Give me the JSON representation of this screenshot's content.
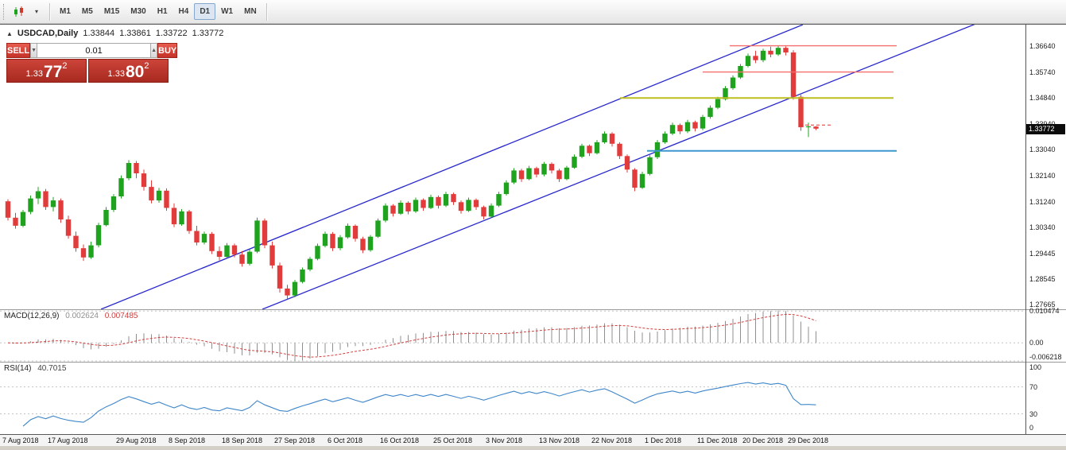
{
  "toolbar": {
    "timeframes": [
      "M1",
      "M5",
      "M15",
      "M30",
      "H1",
      "H4",
      "D1",
      "W1",
      "MN"
    ],
    "active_timeframe": "D1",
    "chart_type_tooltip": "chart-type"
  },
  "quote_header": {
    "toggle_glyph": "▲",
    "symbol": "USDCAD,Daily",
    "open": "1.33844",
    "high": "1.33861",
    "low": "1.33722",
    "close": "1.33772"
  },
  "trade_widget": {
    "sell_label": "SELL",
    "buy_label": "BUY",
    "volume": "0.01",
    "stepper_down": "▼",
    "stepper_up": "▲",
    "sell_price": {
      "small": "1.33",
      "big": "77",
      "sup": "2"
    },
    "buy_price": {
      "small": "1.33",
      "big": "80",
      "sup": "2"
    }
  },
  "price_scale": {
    "current": "1.33772"
  },
  "chart_data": {
    "type": "candlestick",
    "title": "USDCAD,Daily",
    "symbol": "USDCAD",
    "timeframe": "Daily",
    "ylim": [
      1.275,
      1.3739
    ],
    "grid": false,
    "colors": {
      "bull": "#1fa31f",
      "bear": "#e23b3b",
      "channel": "#2828cc"
    },
    "y_ticks": [
      "1.36640",
      "1.35740",
      "1.34840",
      "1.33940",
      "1.33040",
      "1.32140",
      "1.31240",
      "1.30340",
      "1.29445",
      "1.28545",
      "1.27665"
    ],
    "x_labels": [
      {
        "i": 0,
        "t": "7 Aug 2018"
      },
      {
        "i": 6,
        "t": "17 Aug 2018"
      },
      {
        "i": 15,
        "t": "29 Aug 2018"
      },
      {
        "i": 22,
        "t": "8 Sep 2018"
      },
      {
        "i": 29,
        "t": "18 Sep 2018"
      },
      {
        "i": 36,
        "t": "27 Sep 2018"
      },
      {
        "i": 43,
        "t": "6 Oct 2018"
      },
      {
        "i": 50,
        "t": "16 Oct 2018"
      },
      {
        "i": 57,
        "t": "25 Oct 2018"
      },
      {
        "i": 64,
        "t": "3 Nov 2018"
      },
      {
        "i": 71,
        "t": "13 Nov 2018"
      },
      {
        "i": 78,
        "t": "22 Nov 2018"
      },
      {
        "i": 85,
        "t": "1 Dec 2018"
      },
      {
        "i": 92,
        "t": "11 Dec 2018"
      },
      {
        "i": 98,
        "t": "20 Dec 2018"
      },
      {
        "i": 104,
        "t": "29 Dec 2018"
      }
    ],
    "candles": [
      [
        1.3125,
        1.3132,
        1.3058,
        1.3068
      ],
      [
        1.3068,
        1.3085,
        1.303,
        1.304
      ],
      [
        1.304,
        1.3095,
        1.3035,
        1.3088
      ],
      [
        1.3088,
        1.3145,
        1.308,
        1.3135
      ],
      [
        1.3135,
        1.3175,
        1.3115,
        1.316
      ],
      [
        1.316,
        1.3168,
        1.3095,
        1.3105
      ],
      [
        1.3105,
        1.314,
        1.309,
        1.3128
      ],
      [
        1.3128,
        1.3135,
        1.305,
        1.3062
      ],
      [
        1.3062,
        1.3075,
        1.2995,
        1.3005
      ],
      [
        1.3005,
        1.302,
        1.295,
        1.2962
      ],
      [
        1.2962,
        1.2975,
        1.2918,
        1.293
      ],
      [
        1.293,
        1.2985,
        1.2925,
        1.2972
      ],
      [
        1.2972,
        1.305,
        1.2965,
        1.3042
      ],
      [
        1.3042,
        1.3105,
        1.3038,
        1.3095
      ],
      [
        1.3095,
        1.315,
        1.3088,
        1.3142
      ],
      [
        1.3142,
        1.3215,
        1.3135,
        1.3205
      ],
      [
        1.3205,
        1.3268,
        1.3198,
        1.3258
      ],
      [
        1.3258,
        1.3265,
        1.3205,
        1.3222
      ],
      [
        1.3222,
        1.3235,
        1.3162,
        1.3175
      ],
      [
        1.3175,
        1.3198,
        1.3118,
        1.3128
      ],
      [
        1.3128,
        1.3172,
        1.312,
        1.3162
      ],
      [
        1.3162,
        1.317,
        1.3092,
        1.3102
      ],
      [
        1.3102,
        1.3118,
        1.3035,
        1.3045
      ],
      [
        1.3045,
        1.3098,
        1.304,
        1.309
      ],
      [
        1.309,
        1.3095,
        1.3012,
        1.3022
      ],
      [
        1.3022,
        1.304,
        1.2972,
        1.2982
      ],
      [
        1.2982,
        1.302,
        1.2975,
        1.3012
      ],
      [
        1.3012,
        1.3018,
        1.2942,
        1.2952
      ],
      [
        1.2952,
        1.2968,
        1.292,
        1.2932
      ],
      [
        1.2932,
        1.298,
        1.2928,
        1.2972
      ],
      [
        1.2972,
        1.2978,
        1.293,
        1.294
      ],
      [
        1.294,
        1.2952,
        1.2898,
        1.2908
      ],
      [
        1.2908,
        1.2958,
        1.2902,
        1.295
      ],
      [
        1.295,
        1.3068,
        1.2945,
        1.3058
      ],
      [
        1.3058,
        1.3065,
        1.2962,
        1.2972
      ],
      [
        1.2972,
        1.2985,
        1.2892,
        1.2902
      ],
      [
        1.2902,
        1.2912,
        1.2808,
        1.2822
      ],
      [
        1.2822,
        1.2835,
        1.2785,
        1.2798
      ],
      [
        1.2798,
        1.2852,
        1.2792,
        1.2845
      ],
      [
        1.2845,
        1.2895,
        1.284,
        1.2888
      ],
      [
        1.2888,
        1.2932,
        1.2882,
        1.2925
      ],
      [
        1.2925,
        1.2978,
        1.292,
        1.297
      ],
      [
        1.297,
        1.302,
        1.2965,
        1.3012
      ],
      [
        1.3012,
        1.3018,
        1.2952,
        1.2962
      ],
      [
        1.2962,
        1.3008,
        1.2955,
        1.3
      ],
      [
        1.3,
        1.3048,
        1.2995,
        1.304
      ],
      [
        1.304,
        1.3045,
        1.2985,
        1.2995
      ],
      [
        1.2995,
        1.3002,
        1.2945,
        1.2955
      ],
      [
        1.2955,
        1.3008,
        1.295,
        1.3002
      ],
      [
        1.3002,
        1.3065,
        1.2998,
        1.3058
      ],
      [
        1.3058,
        1.3118,
        1.3052,
        1.311
      ],
      [
        1.311,
        1.3115,
        1.3072,
        1.3082
      ],
      [
        1.3082,
        1.3128,
        1.3078,
        1.312
      ],
      [
        1.312,
        1.3125,
        1.308,
        1.309
      ],
      [
        1.309,
        1.3138,
        1.3085,
        1.313
      ],
      [
        1.313,
        1.3135,
        1.3092,
        1.3102
      ],
      [
        1.3102,
        1.3148,
        1.3098,
        1.314
      ],
      [
        1.314,
        1.3145,
        1.31,
        1.311
      ],
      [
        1.311,
        1.3158,
        1.3105,
        1.315
      ],
      [
        1.315,
        1.3155,
        1.3112,
        1.3122
      ],
      [
        1.3122,
        1.3128,
        1.3082,
        1.3092
      ],
      [
        1.3092,
        1.3138,
        1.3088,
        1.313
      ],
      [
        1.313,
        1.3135,
        1.3095,
        1.3105
      ],
      [
        1.3105,
        1.311,
        1.3062,
        1.3072
      ],
      [
        1.3072,
        1.3118,
        1.3068,
        1.311
      ],
      [
        1.311,
        1.3158,
        1.3105,
        1.315
      ],
      [
        1.315,
        1.3198,
        1.3145,
        1.319
      ],
      [
        1.319,
        1.324,
        1.3185,
        1.3232
      ],
      [
        1.3232,
        1.3238,
        1.3192,
        1.3202
      ],
      [
        1.3202,
        1.3248,
        1.3198,
        1.324
      ],
      [
        1.324,
        1.3245,
        1.3208,
        1.3218
      ],
      [
        1.3218,
        1.3262,
        1.3212,
        1.3255
      ],
      [
        1.3255,
        1.326,
        1.3222,
        1.3232
      ],
      [
        1.3232,
        1.3238,
        1.3192,
        1.3202
      ],
      [
        1.3202,
        1.3248,
        1.3198,
        1.3242
      ],
      [
        1.3242,
        1.3288,
        1.3238,
        1.328
      ],
      [
        1.328,
        1.3325,
        1.3275,
        1.3318
      ],
      [
        1.3318,
        1.3322,
        1.3282,
        1.3292
      ],
      [
        1.3292,
        1.3338,
        1.3288,
        1.333
      ],
      [
        1.333,
        1.3368,
        1.3325,
        1.336
      ],
      [
        1.336,
        1.3365,
        1.3315,
        1.3325
      ],
      [
        1.3325,
        1.333,
        1.3272,
        1.3282
      ],
      [
        1.3282,
        1.3288,
        1.3225,
        1.3235
      ],
      [
        1.3235,
        1.324,
        1.316,
        1.3172
      ],
      [
        1.3172,
        1.3228,
        1.3168,
        1.322
      ],
      [
        1.322,
        1.3285,
        1.3215,
        1.3278
      ],
      [
        1.3278,
        1.3338,
        1.3272,
        1.333
      ],
      [
        1.333,
        1.3368,
        1.3325,
        1.336
      ],
      [
        1.336,
        1.3398,
        1.3355,
        1.339
      ],
      [
        1.339,
        1.3395,
        1.3358,
        1.3368
      ],
      [
        1.3368,
        1.3408,
        1.3362,
        1.34
      ],
      [
        1.34,
        1.3405,
        1.3368,
        1.3378
      ],
      [
        1.3378,
        1.3425,
        1.3372,
        1.3418
      ],
      [
        1.3418,
        1.3458,
        1.3412,
        1.345
      ],
      [
        1.345,
        1.3488,
        1.3445,
        1.348
      ],
      [
        1.348,
        1.3525,
        1.3475,
        1.3518
      ],
      [
        1.3518,
        1.3562,
        1.3512,
        1.3555
      ],
      [
        1.3555,
        1.3602,
        1.355,
        1.3595
      ],
      [
        1.3595,
        1.3638,
        1.359,
        1.363
      ],
      [
        1.363,
        1.3648,
        1.3605,
        1.3615
      ],
      [
        1.3615,
        1.3655,
        1.3608,
        1.3648
      ],
      [
        1.3648,
        1.3662,
        1.3625,
        1.3635
      ],
      [
        1.3635,
        1.3664,
        1.363,
        1.3658
      ],
      [
        1.3658,
        1.3663,
        1.3632,
        1.3642
      ],
      [
        1.3642,
        1.365,
        1.3478,
        1.3488
      ],
      [
        1.3488,
        1.3495,
        1.337,
        1.3382
      ],
      [
        1.3382,
        1.3398,
        1.3348,
        1.3385
      ],
      [
        1.33844,
        1.33861,
        1.33722,
        1.33772
      ]
    ],
    "trendlines": [
      {
        "x1": 127,
        "y1": 389,
        "x2": 1010,
        "y2": 31
      },
      {
        "x1": 330,
        "y1": 389,
        "x2": 1290,
        "y2": 5
      }
    ],
    "hlines": [
      {
        "price": 1.3665,
        "x1": 918,
        "x2": 1128,
        "color": "#f46e6e",
        "w": 1.4
      },
      {
        "price": 1.3574,
        "x1": 884,
        "x2": 1124,
        "color": "#f46e6e",
        "w": 1.4
      },
      {
        "price": 1.3484,
        "x1": 780,
        "x2": 1124,
        "color": "#bcbf1e",
        "w": 2
      },
      {
        "price": 1.33,
        "x1": 814,
        "x2": 1128,
        "color": "#3d97cf",
        "w": 2
      }
    ],
    "ask_dash": {
      "price": 1.339,
      "x1": 1006,
      "x2": 1046
    },
    "indicators": {
      "macd": {
        "name": "MACD(12,26,9)",
        "value_main": "0.002624",
        "value_signal": "0.007485",
        "params": [
          12,
          26,
          9
        ],
        "levels": [
          0.010474,
          0,
          -0.006218
        ],
        "level_labels": [
          "0.010474",
          "0.00",
          "-0.006218"
        ]
      },
      "rsi": {
        "name": "RSI(14)",
        "value": "40.7015",
        "period": 14,
        "levels": [
          100,
          70,
          30,
          0
        ],
        "dashed_levels": [
          70,
          30
        ]
      }
    }
  }
}
